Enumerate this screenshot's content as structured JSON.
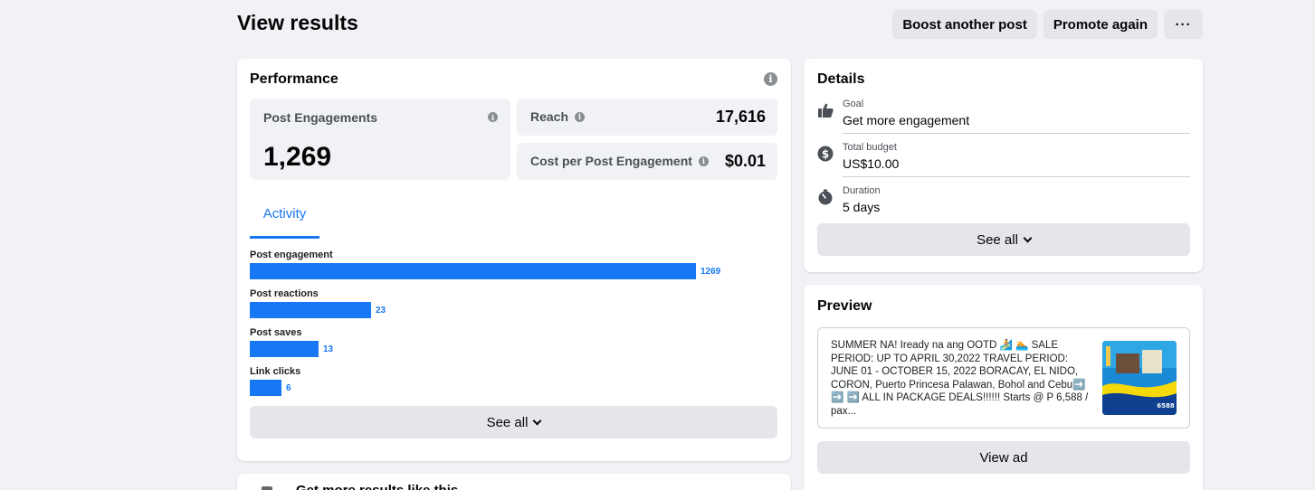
{
  "header": {
    "title": "View results",
    "boost_label": "Boost another post",
    "promote_label": "Promote again",
    "more_label": "···"
  },
  "performance": {
    "title": "Performance",
    "info_icon": "info-icon",
    "post_engagements": {
      "label": "Post Engagements",
      "value": "1,269"
    },
    "reach": {
      "label": "Reach",
      "value": "17,616"
    },
    "cost": {
      "label": "Cost per Post Engagement",
      "value": "$0.01"
    },
    "tab_label": "Activity",
    "activity": [
      {
        "label": "Post engagement",
        "value": 1269,
        "display": "1269"
      },
      {
        "label": "Post reactions",
        "value": 23,
        "display": "23"
      },
      {
        "label": "Post saves",
        "value": 13,
        "display": "13"
      },
      {
        "label": "Link clicks",
        "value": 6,
        "display": "6"
      }
    ],
    "see_all_label": "See all"
  },
  "details": {
    "title": "Details",
    "goal": {
      "label": "Goal",
      "value": "Get more engagement",
      "icon": "thumbs-up-icon"
    },
    "budget": {
      "label": "Total budget",
      "value": "US$10.00",
      "icon": "dollar-icon"
    },
    "duration": {
      "label": "Duration",
      "value": "5 days",
      "icon": "stopwatch-icon"
    },
    "see_all_label": "See all"
  },
  "preview": {
    "title": "Preview",
    "ad_text": "SUMMER NA! Iready na ang OOTD 🏄 🏊 SALE PERIOD: UP TO APRIL 30,2022 TRAVEL PERIOD: JUNE 01 - OCTOBER 15, 2022 BORACAY, EL NIDO, CORON, Puerto Princesa Palawan, Bohol and Cebu➡️ ➡️ ➡️ ALL IN PACKAGE DEALS!!!!!! Starts @ P 6,588 / pax...",
    "thumb_price": "6588",
    "view_ad_label": "View ad"
  },
  "more_results": {
    "title": "Get more results like this"
  },
  "colors": {
    "accent": "#1877f2",
    "background": "#f0f2f5",
    "button": "#e4e6eb"
  }
}
